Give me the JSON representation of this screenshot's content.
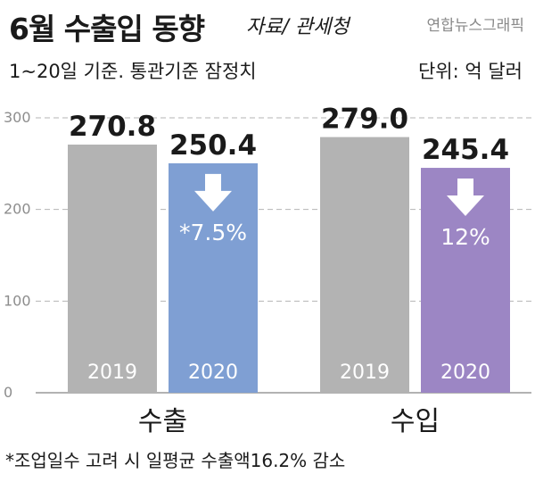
{
  "header": {
    "title": "6월 수출입 동향",
    "source": "자료/ 관세청",
    "credit": "연합뉴스그래픽",
    "subtitle": "1~20일 기준. 통관기준 잠정치",
    "unit": "단위: 억 달러"
  },
  "footnote": "*조업일수 고려 시 일평균 수출액16.2% 감소",
  "colors": {
    "bar_2019": "#b3b3b3",
    "export_2020": "#7f9fd3",
    "import_2020": "#9c86c4",
    "gridline": "#b5b5b5"
  },
  "icons": {
    "decline": "down-arrow-icon"
  },
  "chart_data": {
    "type": "bar",
    "categories": [
      "수출",
      "수입"
    ],
    "series": [
      {
        "name": "2019",
        "values": [
          270.8,
          279.0
        ],
        "labels": [
          "270.8",
          "279.0"
        ]
      },
      {
        "name": "2020",
        "values": [
          250.4,
          245.4
        ],
        "labels": [
          "250.4",
          "245.4"
        ]
      }
    ],
    "changes": [
      "*7.5%",
      "12%"
    ],
    "yticks": [
      0,
      100,
      200,
      300
    ],
    "ylim": [
      0,
      300
    ],
    "grid": true
  }
}
